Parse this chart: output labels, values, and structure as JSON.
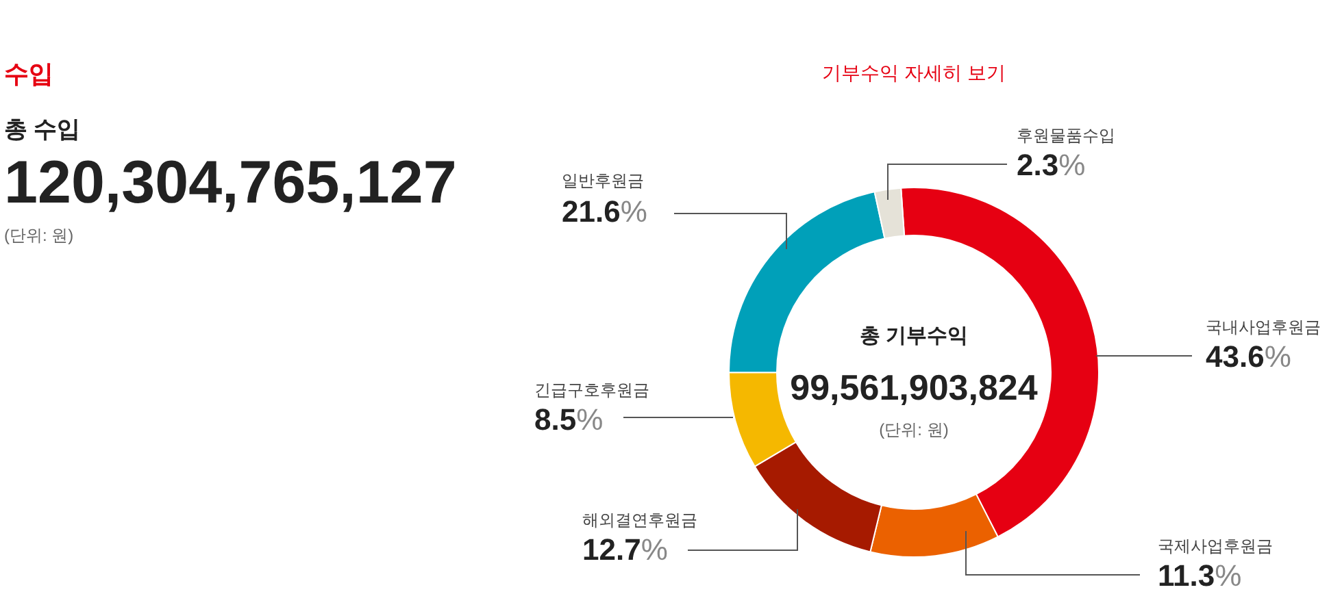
{
  "chart_data": {
    "type": "donut",
    "title": "기부수익 자세히 보기",
    "categories": [
      "국내사업후원금",
      "국제사업후원금",
      "해외결연후원금",
      "긴급구호후원금",
      "일반후원금",
      "후원물품수입"
    ],
    "values": [
      43.6,
      11.3,
      12.7,
      8.5,
      21.6,
      2.3
    ],
    "colors": [
      "#e60012",
      "#eb6100",
      "#a61a00",
      "#f5b800",
      "#00a0b9",
      "#e5e2d8"
    ],
    "value_labels": [
      "43.6%",
      "11.3%",
      "12.7%",
      "8.5%",
      "21.6%",
      "2.3%"
    ],
    "annotations": [
      "수입",
      "총 수입",
      "120,304,765,127",
      "(단위: 원)",
      "총 기부수익",
      "99,561,903,824",
      "(단위: 원)"
    ]
  }
}
